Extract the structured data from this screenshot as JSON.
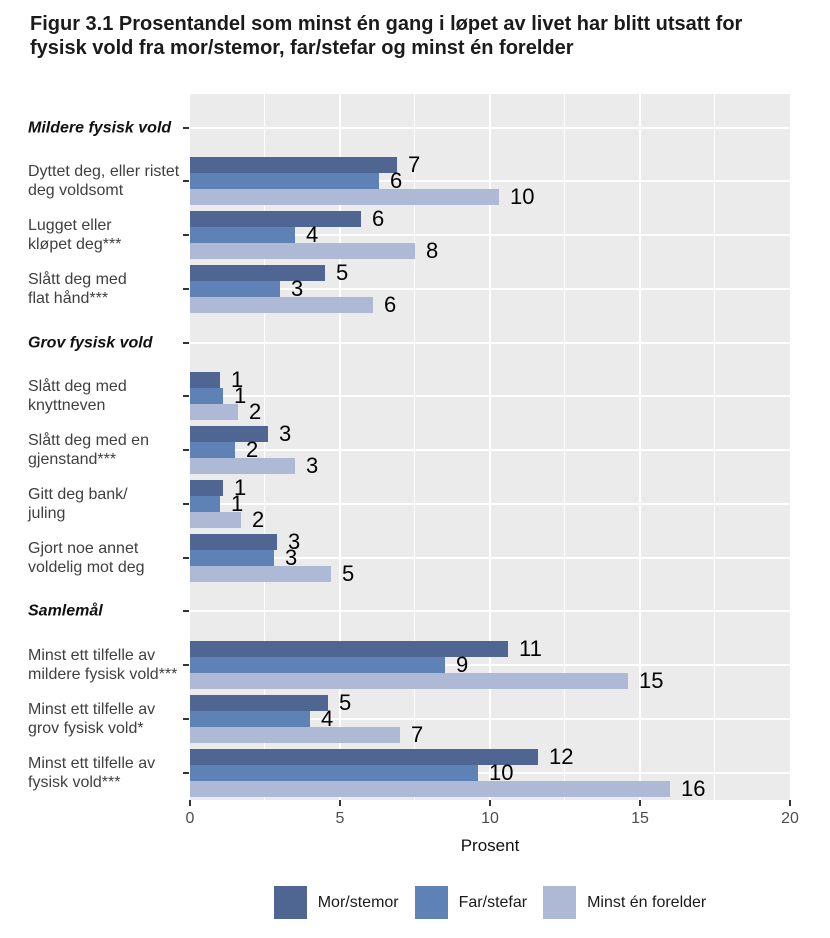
{
  "title": {
    "line1": "Figur 3.1 Prosentandel som minst én gang i løpet av livet har blitt utsatt for",
    "line2": "fysisk vold fra mor/stemor, far/stefar og minst én forelder"
  },
  "colors": {
    "panel_background": "#ebebeb",
    "grid": "#ffffff",
    "tick": "#333333",
    "axis_text": "#4d4d4d",
    "label_text": "#3f3f3f",
    "value_text": "#000000"
  },
  "chart_data": {
    "type": "bar",
    "orientation": "horizontal",
    "title": "Figur 3.1 Prosentandel som minst én gang i løpet av livet har blitt utsatt for fysisk vold fra mor/stemor, far/stefar og minst én forelder",
    "xlabel": "Prosent",
    "ylabel": "",
    "xlim": [
      0,
      20
    ],
    "x_ticks": [
      0,
      5,
      10,
      15,
      20
    ],
    "grid": "white major every 5 and minor every 2.5 on gray panel",
    "legend_position": "bottom",
    "series": [
      {
        "name": "Mor/stemor",
        "color": "#4e6691"
      },
      {
        "name": "Far/stefar",
        "color": "#5e81b6"
      },
      {
        "name": "Minst én forelder",
        "color": "#aeb9d5"
      }
    ],
    "groups": [
      {
        "header": "Mildere fysisk vold",
        "items": [
          {
            "label_lines": [
              "Dyttet deg, eller ristet",
              "deg voldsomt"
            ],
            "values": [
              7,
              6,
              10
            ],
            "values_precise": [
              6.9,
              6.3,
              10.3
            ]
          },
          {
            "label_lines": [
              "Lugget eller",
              "kløpet deg***"
            ],
            "values": [
              6,
              4,
              8
            ],
            "values_precise": [
              5.7,
              3.5,
              7.5
            ]
          },
          {
            "label_lines": [
              "Slått deg med",
              "flat hånd***"
            ],
            "values": [
              5,
              3,
              6
            ],
            "values_precise": [
              4.5,
              3.0,
              6.1
            ]
          }
        ]
      },
      {
        "header": "Grov fysisk vold",
        "items": [
          {
            "label_lines": [
              "Slått deg med",
              "knyttneven"
            ],
            "values": [
              1,
              1,
              2
            ],
            "values_precise": [
              1.0,
              1.1,
              1.6
            ]
          },
          {
            "label_lines": [
              "Slått deg med en",
              "gjenstand***"
            ],
            "values": [
              3,
              2,
              3
            ],
            "values_precise": [
              2.6,
              1.5,
              3.5
            ]
          },
          {
            "label_lines": [
              "Gitt deg bank/",
              "juling"
            ],
            "values": [
              1,
              1,
              2
            ],
            "values_precise": [
              1.1,
              1.0,
              1.7
            ]
          },
          {
            "label_lines": [
              "Gjort noe annet",
              "voldelig mot deg"
            ],
            "values": [
              3,
              3,
              5
            ],
            "values_precise": [
              2.9,
              2.8,
              4.7
            ]
          }
        ]
      },
      {
        "header": "Samlemål",
        "items": [
          {
            "label_lines": [
              "Minst ett tilfelle av",
              "mildere fysisk vold***"
            ],
            "values": [
              11,
              9,
              15
            ],
            "values_precise": [
              10.6,
              8.5,
              14.6
            ]
          },
          {
            "label_lines": [
              "Minst ett tilfelle av",
              "grov fysisk vold*"
            ],
            "values": [
              5,
              4,
              7
            ],
            "values_precise": [
              4.6,
              4.0,
              7.0
            ]
          },
          {
            "label_lines": [
              "Minst ett tilfelle av",
              "fysisk vold***"
            ],
            "values": [
              12,
              10,
              16
            ],
            "values_precise": [
              11.6,
              9.6,
              16.0
            ]
          }
        ]
      }
    ]
  }
}
